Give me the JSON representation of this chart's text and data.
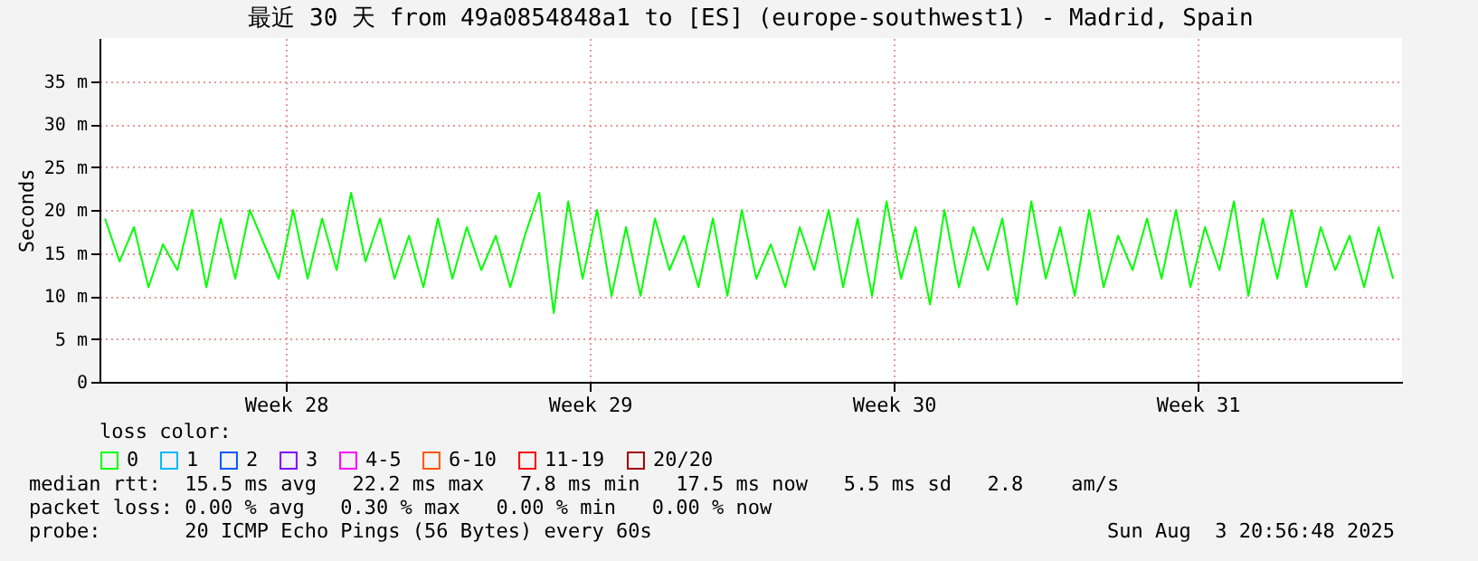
{
  "chart_data": {
    "type": "line",
    "title": "最近 30 天 from 49a0854848a1 to [ES] (europe-southwest1) - Madrid, Spain",
    "ylabel": "Seconds",
    "legend_title": "loss color:",
    "legend": "bottom",
    "grid": true,
    "line_style": "solid",
    "x": [
      "2025-07-05T00:00",
      "2025-07-05T08:00",
      "2025-07-05T16:00",
      "2025-07-06T00:00",
      "2025-07-06T08:00",
      "2025-07-06T16:00",
      "2025-07-07T00:00",
      "2025-07-07T08:00",
      "2025-07-07T16:00",
      "2025-07-08T00:00",
      "2025-07-08T08:00",
      "2025-07-08T16:00",
      "2025-07-09T00:00",
      "2025-07-09T08:00",
      "2025-07-09T16:00",
      "2025-07-10T00:00",
      "2025-07-10T08:00",
      "2025-07-10T16:00",
      "2025-07-11T00:00",
      "2025-07-11T08:00",
      "2025-07-11T16:00",
      "2025-07-12T00:00",
      "2025-07-12T08:00",
      "2025-07-12T16:00",
      "2025-07-13T00:00",
      "2025-07-13T08:00",
      "2025-07-13T16:00",
      "2025-07-14T00:00",
      "2025-07-14T08:00",
      "2025-07-14T16:00",
      "2025-07-15T00:00",
      "2025-07-15T08:00",
      "2025-07-15T16:00",
      "2025-07-16T00:00",
      "2025-07-16T08:00",
      "2025-07-16T16:00",
      "2025-07-17T00:00",
      "2025-07-17T08:00",
      "2025-07-17T16:00",
      "2025-07-18T00:00",
      "2025-07-18T08:00",
      "2025-07-18T16:00",
      "2025-07-19T00:00",
      "2025-07-19T08:00",
      "2025-07-19T16:00",
      "2025-07-20T00:00",
      "2025-07-20T08:00",
      "2025-07-20T16:00",
      "2025-07-21T00:00",
      "2025-07-21T08:00",
      "2025-07-21T16:00",
      "2025-07-22T00:00",
      "2025-07-22T08:00",
      "2025-07-22T16:00",
      "2025-07-23T00:00",
      "2025-07-23T08:00",
      "2025-07-23T16:00",
      "2025-07-24T00:00",
      "2025-07-24T08:00",
      "2025-07-24T16:00",
      "2025-07-25T00:00",
      "2025-07-25T08:00",
      "2025-07-25T16:00",
      "2025-07-26T00:00",
      "2025-07-26T08:00",
      "2025-07-26T16:00",
      "2025-07-27T00:00",
      "2025-07-27T08:00",
      "2025-07-27T16:00",
      "2025-07-28T00:00",
      "2025-07-28T08:00",
      "2025-07-28T16:00",
      "2025-07-29T00:00",
      "2025-07-29T08:00",
      "2025-07-29T16:00",
      "2025-07-30T00:00",
      "2025-07-30T08:00",
      "2025-07-30T16:00",
      "2025-07-31T00:00",
      "2025-07-31T08:00",
      "2025-07-31T16:00",
      "2025-08-01T00:00",
      "2025-08-01T08:00",
      "2025-08-01T16:00",
      "2025-08-02T00:00",
      "2025-08-02T08:00",
      "2025-08-02T16:00",
      "2025-08-03T00:00",
      "2025-08-03T08:00",
      "2025-08-03T16:00"
    ],
    "series": [
      {
        "name": "0",
        "color": "#00ff00",
        "values": [
          19,
          14,
          18,
          11,
          16,
          13,
          20,
          11,
          19,
          12,
          20,
          16,
          12,
          20,
          12,
          19,
          13,
          22,
          14,
          19,
          12,
          17,
          11,
          19,
          12,
          18,
          13,
          17,
          11,
          17,
          22,
          8,
          21,
          12,
          20,
          10,
          18,
          10,
          19,
          13,
          17,
          11,
          19,
          10,
          20,
          12,
          16,
          11,
          18,
          13,
          20,
          11,
          19,
          10,
          21,
          12,
          18,
          9,
          20,
          11,
          18,
          13,
          19,
          9,
          21,
          12,
          18,
          10,
          20,
          11,
          17,
          13,
          19,
          12,
          20,
          11,
          18,
          13,
          21,
          10,
          19,
          12,
          20,
          11,
          18,
          13,
          17,
          11,
          18,
          12
        ]
      },
      {
        "name": "1",
        "color": "#00b8ff",
        "values": [
          null,
          null,
          null,
          null,
          null,
          null,
          null,
          null,
          null,
          null,
          null,
          null,
          null,
          null,
          null,
          null,
          null,
          null,
          null,
          null,
          null,
          null,
          null,
          null,
          null,
          null,
          null,
          null,
          null,
          null,
          null,
          null,
          null,
          null,
          null,
          null,
          null,
          null,
          null,
          null,
          null,
          null,
          null,
          null,
          null,
          null,
          null,
          null,
          null,
          null,
          null,
          null,
          null,
          null,
          null,
          null,
          null,
          null,
          null,
          null,
          null,
          null,
          null,
          null,
          null,
          null,
          null,
          null,
          null,
          null,
          null,
          null,
          null,
          null,
          null,
          null,
          null,
          null,
          null,
          null,
          null,
          null,
          null,
          null,
          null,
          null,
          null,
          null,
          null,
          null
        ]
      },
      {
        "name": "2",
        "color": "#0059ff",
        "values": [
          null,
          null,
          null,
          null,
          null,
          null,
          null,
          null,
          null,
          null,
          null,
          null,
          null,
          null,
          null,
          null,
          null,
          null,
          null,
          null,
          null,
          null,
          null,
          null,
          null,
          null,
          null,
          null,
          null,
          null,
          null,
          null,
          null,
          null,
          null,
          null,
          null,
          null,
          null,
          null,
          null,
          null,
          null,
          null,
          null,
          null,
          null,
          null,
          null,
          null,
          null,
          null,
          null,
          null,
          null,
          null,
          null,
          null,
          null,
          null,
          null,
          null,
          null,
          null,
          null,
          null,
          null,
          null,
          null,
          null,
          null,
          null,
          null,
          null,
          null,
          null,
          null,
          null,
          null,
          null,
          null,
          null,
          null,
          null,
          null,
          null,
          null,
          null,
          null,
          null
        ]
      },
      {
        "name": "3",
        "color": "#7e00ff",
        "values": [
          null,
          null,
          null,
          null,
          null,
          null,
          null,
          null,
          null,
          null,
          null,
          null,
          null,
          null,
          null,
          null,
          null,
          null,
          null,
          null,
          null,
          null,
          null,
          null,
          null,
          null,
          null,
          null,
          null,
          null,
          null,
          null,
          null,
          null,
          null,
          null,
          null,
          null,
          null,
          null,
          null,
          null,
          null,
          null,
          null,
          null,
          null,
          null,
          null,
          null,
          null,
          null,
          null,
          null,
          null,
          null,
          null,
          null,
          null,
          null,
          null,
          null,
          null,
          null,
          null,
          null,
          null,
          null,
          null,
          null,
          null,
          null,
          null,
          null,
          null,
          null,
          null,
          null,
          null,
          null,
          null,
          null,
          null,
          null,
          null,
          null,
          null,
          null,
          null,
          null
        ]
      },
      {
        "name": "4-5",
        "color": "#ff00ff",
        "values": [
          null,
          null,
          null,
          null,
          null,
          null,
          null,
          null,
          null,
          null,
          null,
          null,
          null,
          null,
          null,
          null,
          null,
          null,
          null,
          null,
          null,
          null,
          null,
          null,
          null,
          null,
          null,
          null,
          null,
          null,
          null,
          null,
          null,
          null,
          null,
          null,
          null,
          null,
          null,
          null,
          null,
          null,
          null,
          null,
          null,
          null,
          null,
          null,
          null,
          null,
          null,
          null,
          null,
          null,
          null,
          null,
          null,
          null,
          null,
          null,
          null,
          null,
          null,
          null,
          null,
          null,
          null,
          null,
          null,
          null,
          null,
          null,
          null,
          null,
          null,
          null,
          null,
          null,
          null,
          null,
          null,
          null,
          null,
          null,
          null,
          null,
          null,
          null,
          null,
          null
        ]
      },
      {
        "name": "6-10",
        "color": "#ff5500",
        "values": [
          null,
          null,
          null,
          null,
          null,
          null,
          null,
          null,
          null,
          null,
          null,
          null,
          null,
          null,
          null,
          null,
          null,
          null,
          null,
          null,
          null,
          null,
          null,
          null,
          null,
          null,
          null,
          null,
          null,
          null,
          null,
          null,
          null,
          null,
          null,
          null,
          null,
          null,
          null,
          null,
          null,
          null,
          null,
          null,
          null,
          null,
          null,
          null,
          null,
          null,
          null,
          null,
          null,
          null,
          null,
          null,
          null,
          null,
          null,
          null,
          null,
          null,
          null,
          null,
          null,
          null,
          null,
          null,
          null,
          null,
          null,
          null,
          null,
          null,
          null,
          null,
          null,
          null,
          null,
          null,
          null,
          null,
          null,
          null,
          null,
          null,
          null,
          null,
          null,
          null
        ]
      },
      {
        "name": "11-19",
        "color": "#ff0000",
        "values": [
          null,
          null,
          null,
          null,
          null,
          null,
          null,
          null,
          null,
          null,
          null,
          null,
          null,
          null,
          null,
          null,
          null,
          null,
          null,
          null,
          null,
          null,
          null,
          null,
          null,
          null,
          null,
          null,
          null,
          null,
          null,
          null,
          null,
          null,
          null,
          null,
          null,
          null,
          null,
          null,
          null,
          null,
          null,
          null,
          null,
          null,
          null,
          null,
          null,
          null,
          null,
          null,
          null,
          null,
          null,
          null,
          null,
          null,
          null,
          null,
          null,
          null,
          null,
          null,
          null,
          null,
          null,
          null,
          null,
          null,
          null,
          null,
          null,
          null,
          null,
          null,
          null,
          null,
          null,
          null,
          null,
          null,
          null,
          null,
          null,
          null,
          null,
          null,
          null,
          null
        ]
      },
      {
        "name": "20/20",
        "color": "#a10000",
        "values": [
          null,
          null,
          null,
          null,
          null,
          null,
          null,
          null,
          null,
          null,
          null,
          null,
          null,
          null,
          null,
          null,
          null,
          null,
          null,
          null,
          null,
          null,
          null,
          null,
          null,
          null,
          null,
          null,
          null,
          null,
          null,
          null,
          null,
          null,
          null,
          null,
          null,
          null,
          null,
          null,
          null,
          null,
          null,
          null,
          null,
          null,
          null,
          null,
          null,
          null,
          null,
          null,
          null,
          null,
          null,
          null,
          null,
          null,
          null,
          null,
          null,
          null,
          null,
          null,
          null,
          null,
          null,
          null,
          null,
          null,
          null,
          null,
          null,
          null,
          null,
          null,
          null,
          null,
          null,
          null,
          null,
          null,
          null,
          null,
          null,
          null,
          null,
          null,
          null,
          null
        ]
      }
    ],
    "xlim": [
      "2025-07-04T20:56",
      "2025-08-03T20:56"
    ],
    "xticks": [
      {
        "value": "2025-07-09T04:00",
        "label": "Week 28"
      },
      {
        "value": "2025-07-16T04:00",
        "label": "Week 29"
      },
      {
        "value": "2025-07-23T04:00",
        "label": "Week 30"
      },
      {
        "value": "2025-07-30T04:00",
        "label": "Week 31"
      }
    ],
    "ylim": [
      0,
      40
    ],
    "yticks": [
      0,
      {
        "value": 5,
        "label": "5 m"
      },
      {
        "value": 10,
        "label": "10 m"
      },
      {
        "value": 15,
        "label": "15 m"
      },
      {
        "value": 20,
        "label": "20 m"
      },
      {
        "value": 25,
        "label": "25 m"
      },
      {
        "value": 30,
        "label": "30 m"
      },
      {
        "value": 35,
        "label": "35 m"
      }
    ],
    "annotations": [
      "median rtt:  15.5 ms avg   22.2 ms max   7.8 ms min   17.5 ms now   5.5 ms sd   2.8    am/s",
      "packet loss: 0.00 % avg   0.30 % max   0.00 % min   0.00 % now",
      "probe:       20 ICMP Echo Pings (56 Bytes) every 60s",
      "Sun Aug  3 20:56:48 2025"
    ]
  }
}
